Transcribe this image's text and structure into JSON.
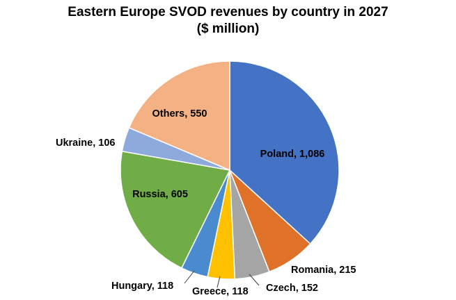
{
  "chart_data": {
    "type": "pie",
    "title": "Eastern Europe SVOD revenues by country in 2027",
    "subtitle": "($ million)",
    "slices": [
      {
        "label": "Poland",
        "value": 1086,
        "display": "Poland, 1,086",
        "color": "#4472C4"
      },
      {
        "label": "Romania",
        "value": 215,
        "display": "Romania, 215",
        "color": "#E07128"
      },
      {
        "label": "Czech",
        "value": 152,
        "display": "Czech, 152",
        "color": "#A5A5A5"
      },
      {
        "label": "Greece",
        "value": 118,
        "display": "Greece, 118",
        "color": "#FFC000"
      },
      {
        "label": "Hungary",
        "value": 118,
        "display": "Hungary, 118",
        "color": "#4A8BD0"
      },
      {
        "label": "Russia",
        "value": 605,
        "display": "Russia, 605",
        "color": "#70AD47"
      },
      {
        "label": "Ukraine",
        "value": 106,
        "display": "Ukraine, 106",
        "color": "#8EA9DB"
      },
      {
        "label": "Others",
        "value": 550,
        "display": "Others, 550",
        "color": "#F4B183"
      }
    ]
  }
}
